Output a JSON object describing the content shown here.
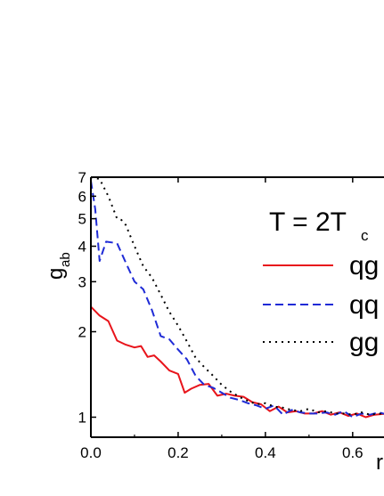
{
  "chart_data": {
    "type": "line",
    "title": "",
    "annotation": {
      "main": "T = 2T",
      "sub": "c"
    },
    "xlabel": "r",
    "ylabel": {
      "main": "g",
      "sub": "ab"
    },
    "xscale": "linear",
    "yscale": "log",
    "xlim": [
      0.0,
      0.68
    ],
    "ylim": [
      0.85,
      7.0
    ],
    "xticks": [
      0.0,
      0.2,
      0.4,
      0.6
    ],
    "xtick_labels": [
      "0.0",
      "0.2",
      "0.4",
      "0.6"
    ],
    "yticks": [
      1,
      2,
      3,
      4,
      5,
      6,
      7
    ],
    "ytick_labels": [
      "1",
      "2",
      "3",
      "4",
      "5",
      "6",
      "7"
    ],
    "grid": false,
    "legend_position": "right",
    "series": [
      {
        "name": "qg",
        "color": "#e8141b",
        "dash": "solid",
        "x": [
          0.0,
          0.02,
          0.04,
          0.06,
          0.08,
          0.1,
          0.115,
          0.13,
          0.145,
          0.16,
          0.18,
          0.2,
          0.215,
          0.23,
          0.25,
          0.27,
          0.29,
          0.31,
          0.33,
          0.35,
          0.37,
          0.39,
          0.41,
          0.43,
          0.45,
          0.47,
          0.49,
          0.51,
          0.53,
          0.55,
          0.57,
          0.59,
          0.61,
          0.63,
          0.65,
          0.68
        ],
        "y": [
          2.45,
          2.28,
          2.18,
          1.86,
          1.8,
          1.76,
          1.78,
          1.63,
          1.65,
          1.57,
          1.46,
          1.42,
          1.22,
          1.26,
          1.3,
          1.31,
          1.19,
          1.21,
          1.19,
          1.18,
          1.13,
          1.11,
          1.05,
          1.09,
          1.04,
          1.05,
          1.03,
          1.03,
          1.05,
          1.02,
          1.04,
          1.01,
          1.03,
          1.0,
          1.02,
          1.03
        ]
      },
      {
        "name": "qq",
        "color": "#1f2bd6",
        "dash": "dashed",
        "x": [
          0.0,
          0.01,
          0.02,
          0.035,
          0.06,
          0.08,
          0.1,
          0.12,
          0.14,
          0.16,
          0.18,
          0.2,
          0.22,
          0.24,
          0.26,
          0.28,
          0.3,
          0.32,
          0.34,
          0.36,
          0.38,
          0.4,
          0.42,
          0.44,
          0.46,
          0.48,
          0.5,
          0.52,
          0.54,
          0.56,
          0.58,
          0.6,
          0.62,
          0.64,
          0.66,
          0.68
        ],
        "y": [
          6.8,
          5.4,
          3.55,
          4.15,
          4.1,
          3.5,
          3.0,
          2.82,
          2.38,
          1.93,
          1.88,
          1.73,
          1.6,
          1.4,
          1.3,
          1.27,
          1.22,
          1.17,
          1.15,
          1.12,
          1.1,
          1.07,
          1.1,
          1.02,
          1.06,
          1.04,
          1.03,
          1.03,
          1.04,
          1.02,
          1.05,
          1.0,
          1.03,
          1.02,
          1.04,
          1.02
        ]
      },
      {
        "name": "gg",
        "color": "#000000",
        "dash": "dotted",
        "x": [
          0.0,
          0.02,
          0.04,
          0.06,
          0.07,
          0.08,
          0.1,
          0.12,
          0.14,
          0.16,
          0.18,
          0.2,
          0.22,
          0.24,
          0.26,
          0.28,
          0.3,
          0.32,
          0.34,
          0.36,
          0.38,
          0.4,
          0.42,
          0.44,
          0.46,
          0.48,
          0.5,
          0.52,
          0.54,
          0.56,
          0.58,
          0.6,
          0.62,
          0.64,
          0.66,
          0.68
        ],
        "y": [
          7.0,
          6.9,
          6.0,
          5.0,
          4.95,
          4.75,
          4.0,
          3.4,
          3.1,
          2.7,
          2.35,
          2.1,
          1.85,
          1.62,
          1.5,
          1.4,
          1.3,
          1.23,
          1.18,
          1.14,
          1.11,
          1.12,
          1.09,
          1.08,
          1.06,
          1.05,
          1.07,
          1.04,
          1.05,
          1.03,
          1.03,
          1.02,
          1.04,
          1.02,
          1.03,
          1.02
        ]
      }
    ]
  }
}
